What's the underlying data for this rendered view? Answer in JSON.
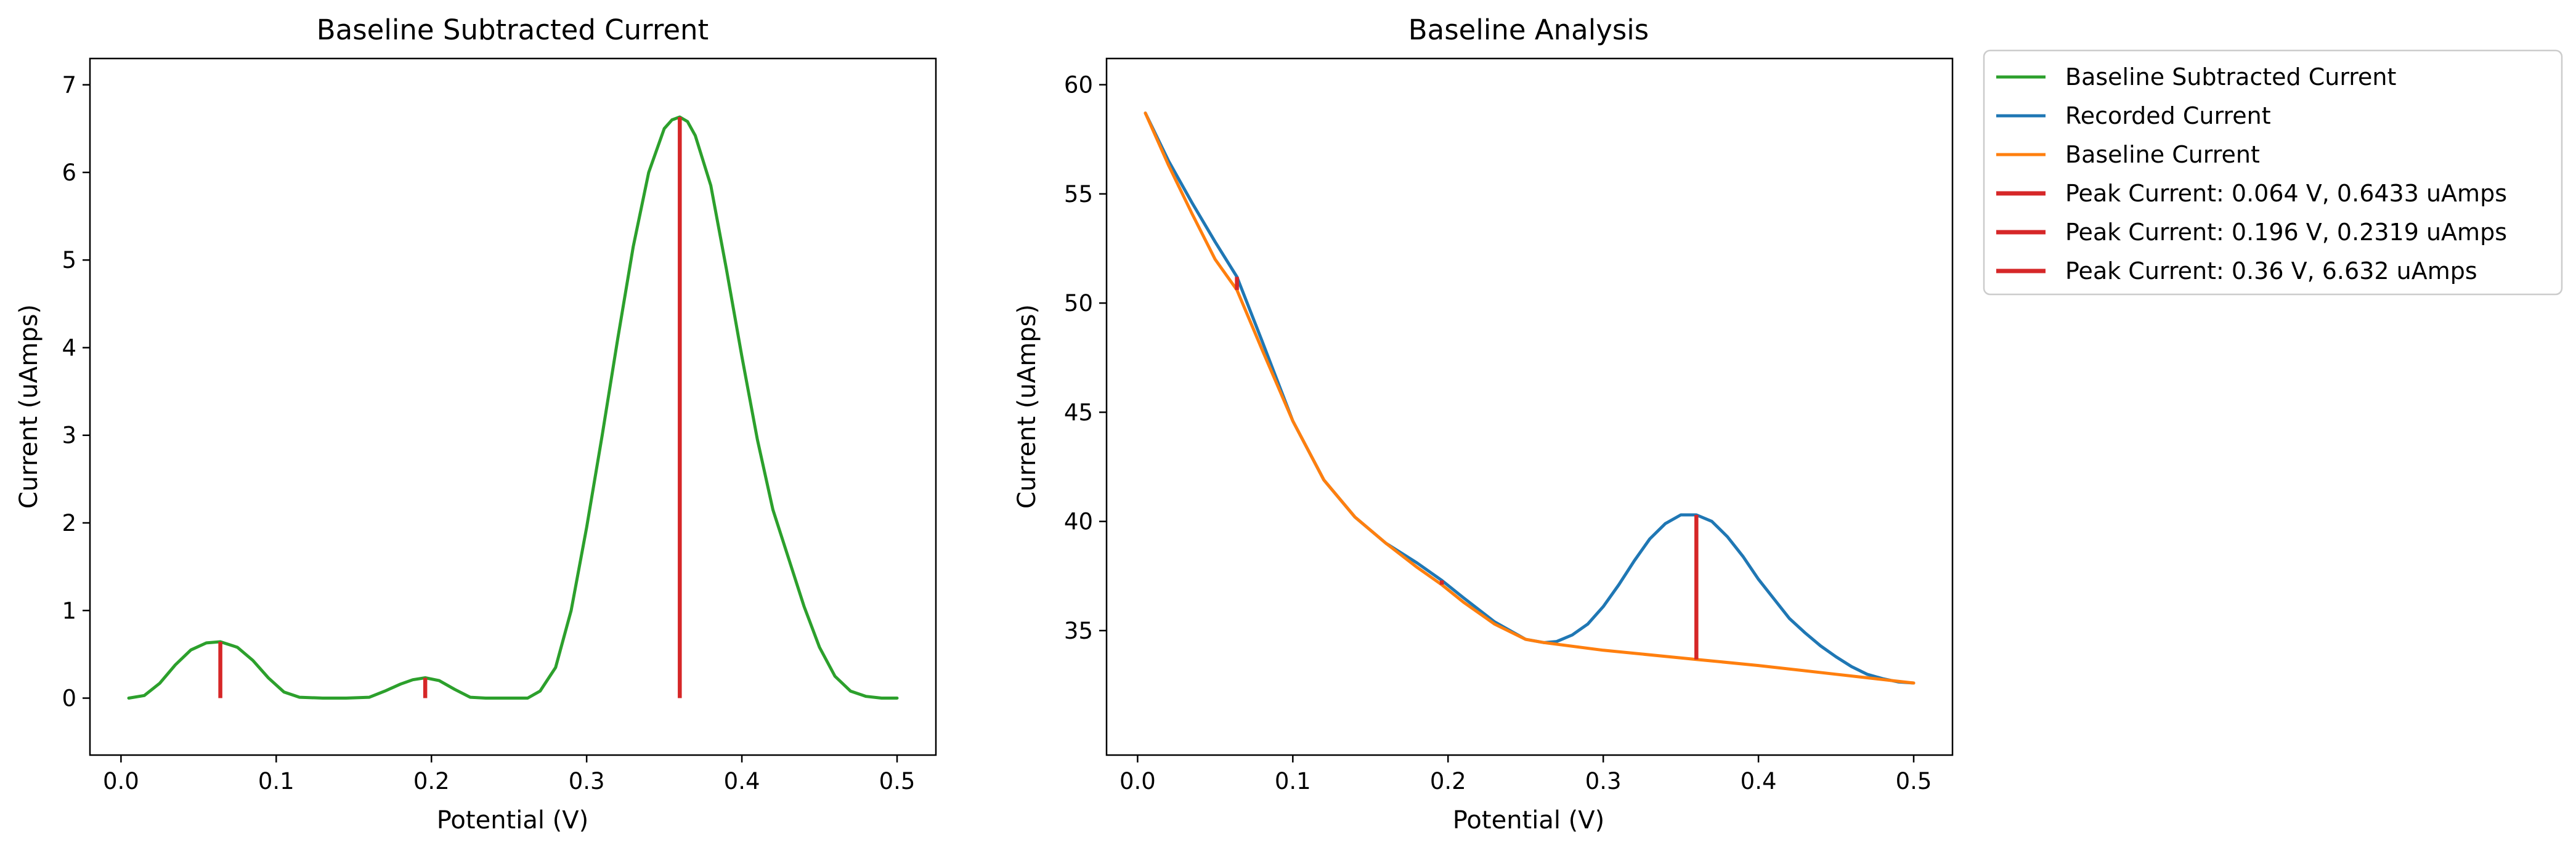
{
  "chart_data": [
    {
      "type": "line",
      "title": "Baseline Subtracted Current",
      "xlabel": "Potential (V)",
      "ylabel": "Current (uAmps)",
      "xlim": [
        -0.02,
        0.525
      ],
      "ylim": [
        -0.65,
        7.3
      ],
      "xticks": [
        "0.0",
        "0.1",
        "0.2",
        "0.3",
        "0.4",
        "0.5"
      ],
      "yticks": [
        "0",
        "1",
        "2",
        "3",
        "4",
        "5",
        "6",
        "7"
      ],
      "grid": false,
      "series": [
        {
          "name": "Baseline Subtracted Current",
          "color": "#2ca02c",
          "x": [
            0.005,
            0.015,
            0.025,
            0.035,
            0.045,
            0.055,
            0.064,
            0.075,
            0.085,
            0.095,
            0.105,
            0.115,
            0.13,
            0.145,
            0.16,
            0.17,
            0.18,
            0.188,
            0.196,
            0.205,
            0.215,
            0.225,
            0.235,
            0.25,
            0.262,
            0.27,
            0.28,
            0.29,
            0.3,
            0.31,
            0.32,
            0.33,
            0.34,
            0.35,
            0.355,
            0.36,
            0.365,
            0.37,
            0.38,
            0.39,
            0.4,
            0.41,
            0.42,
            0.43,
            0.44,
            0.45,
            0.46,
            0.47,
            0.48,
            0.49,
            0.5
          ],
          "y": [
            0.0,
            0.03,
            0.17,
            0.38,
            0.55,
            0.63,
            0.6433,
            0.58,
            0.43,
            0.23,
            0.07,
            0.01,
            0.0,
            0.0,
            0.01,
            0.08,
            0.16,
            0.21,
            0.2319,
            0.2,
            0.1,
            0.01,
            0.0,
            0.0,
            0.0,
            0.08,
            0.35,
            1.0,
            1.95,
            3.0,
            4.1,
            5.15,
            6.0,
            6.5,
            6.6,
            6.632,
            6.58,
            6.42,
            5.85,
            4.9,
            3.9,
            2.95,
            2.15,
            1.6,
            1.05,
            0.58,
            0.25,
            0.08,
            0.02,
            0.0,
            0.0
          ]
        }
      ],
      "peaks": [
        {
          "x": 0.064,
          "y0": 0.0,
          "y1": 0.6433,
          "color": "#d62728"
        },
        {
          "x": 0.196,
          "y0": 0.0,
          "y1": 0.2319,
          "color": "#d62728"
        },
        {
          "x": 0.36,
          "y0": 0.0,
          "y1": 6.632,
          "color": "#d62728"
        }
      ]
    },
    {
      "type": "line",
      "title": "Baseline Analysis",
      "xlabel": "Potential (V)",
      "ylabel": "Current (uAmps)",
      "xlim": [
        -0.02,
        0.525
      ],
      "ylim": [
        29.3,
        61.2
      ],
      "xticks": [
        "0.0",
        "0.1",
        "0.2",
        "0.3",
        "0.4",
        "0.5"
      ],
      "yticks": [
        "35",
        "40",
        "45",
        "50",
        "55",
        "60"
      ],
      "grid": false,
      "series": [
        {
          "name": "Recorded Current",
          "color": "#1f77b4",
          "x": [
            0.005,
            0.02,
            0.035,
            0.05,
            0.064,
            0.08,
            0.1,
            0.12,
            0.14,
            0.16,
            0.18,
            0.196,
            0.21,
            0.23,
            0.25,
            0.262,
            0.27,
            0.28,
            0.29,
            0.3,
            0.31,
            0.32,
            0.33,
            0.34,
            0.35,
            0.36,
            0.37,
            0.38,
            0.39,
            0.4,
            0.41,
            0.42,
            0.43,
            0.44,
            0.45,
            0.46,
            0.47,
            0.48,
            0.49,
            0.5
          ],
          "y": [
            58.7,
            56.5,
            54.6,
            52.8,
            51.2,
            48.3,
            44.6,
            41.9,
            40.2,
            39.0,
            38.1,
            37.3,
            36.5,
            35.4,
            34.6,
            34.45,
            34.5,
            34.8,
            35.3,
            36.1,
            37.1,
            38.2,
            39.2,
            39.9,
            40.3,
            40.3,
            40.0,
            39.3,
            38.4,
            37.35,
            36.45,
            35.55,
            34.9,
            34.3,
            33.8,
            33.35,
            33.0,
            32.8,
            32.65,
            32.6
          ]
        },
        {
          "name": "Baseline Current",
          "color": "#ff7f0e",
          "x": [
            0.005,
            0.02,
            0.035,
            0.05,
            0.064,
            0.08,
            0.1,
            0.12,
            0.14,
            0.16,
            0.18,
            0.196,
            0.21,
            0.23,
            0.25,
            0.262,
            0.3,
            0.35,
            0.36,
            0.4,
            0.45,
            0.5
          ],
          "y": [
            58.7,
            56.3,
            54.1,
            52.0,
            50.6,
            47.9,
            44.6,
            41.9,
            40.2,
            39.0,
            37.9,
            37.1,
            36.3,
            35.3,
            34.6,
            34.45,
            34.1,
            33.75,
            33.68,
            33.4,
            33.0,
            32.6
          ]
        }
      ],
      "peaks": [
        {
          "x": 0.064,
          "y0": 50.6,
          "y1": 51.2,
          "color": "#d62728"
        },
        {
          "x": 0.196,
          "y0": 37.1,
          "y1": 37.3,
          "color": "#d62728"
        },
        {
          "x": 0.36,
          "y0": 33.68,
          "y1": 40.3,
          "color": "#d62728"
        }
      ]
    }
  ],
  "legend": {
    "placement": "outside right, top",
    "entries": [
      {
        "label": "Baseline Subtracted Current",
        "color": "#2ca02c"
      },
      {
        "label": "Recorded Current",
        "color": "#1f77b4"
      },
      {
        "label": "Baseline Current",
        "color": "#ff7f0e"
      },
      {
        "label": "Peak Current: 0.064 V, 0.6433 uAmps",
        "color": "#d62728"
      },
      {
        "label": "Peak Current: 0.196 V, 0.2319 uAmps",
        "color": "#d62728"
      },
      {
        "label": "Peak Current: 0.36 V, 6.632 uAmps",
        "color": "#d62728"
      }
    ]
  }
}
